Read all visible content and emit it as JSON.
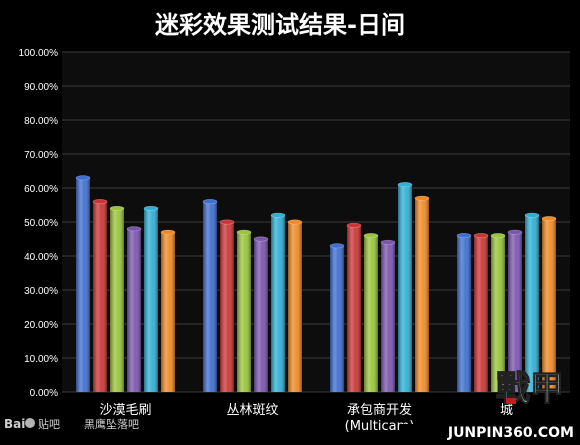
{
  "chart_data": {
    "type": "bar",
    "title": "迷彩效果测试结果-日间",
    "xlabel": "",
    "ylabel": "",
    "ylim": [
      0,
      100
    ],
    "grid": true,
    "yticks": [
      "0.00%",
      "10.00%",
      "20.00%",
      "30.00%",
      "40.00%",
      "50.00%",
      "60.00%",
      "70.00%",
      "80.00%",
      "90.00%",
      "100.00%"
    ],
    "categories": [
      "沙漠毛刷",
      "丛林斑纹",
      "承包商开发\n(Multicam)",
      "城"
    ],
    "series": [
      {
        "color": "#3f6fd0",
        "values": [
          63,
          56,
          43,
          46
        ]
      },
      {
        "color": "#cc3535",
        "values": [
          56,
          50,
          49,
          46
        ]
      },
      {
        "color": "#9ac43a",
        "values": [
          54,
          47,
          46,
          46
        ]
      },
      {
        "color": "#7a56ae",
        "values": [
          48,
          45,
          44,
          47
        ]
      },
      {
        "color": "#2fb0d4",
        "values": [
          54,
          52,
          61,
          52
        ]
      },
      {
        "color": "#f08a25",
        "values": [
          47,
          50,
          57,
          51
        ]
      }
    ]
  },
  "watermarks": {
    "baidu": "Bai",
    "baidu_tieba": "贴吧",
    "baidu_forum": "黑鹰坠落吧",
    "site": "JUNPIN360.COM",
    "logo": "戰甲"
  },
  "colors": {
    "background": "#000000",
    "plot_background": "#0d0d0d",
    "grid": "#3a3a3a",
    "text": "#ffffff"
  }
}
